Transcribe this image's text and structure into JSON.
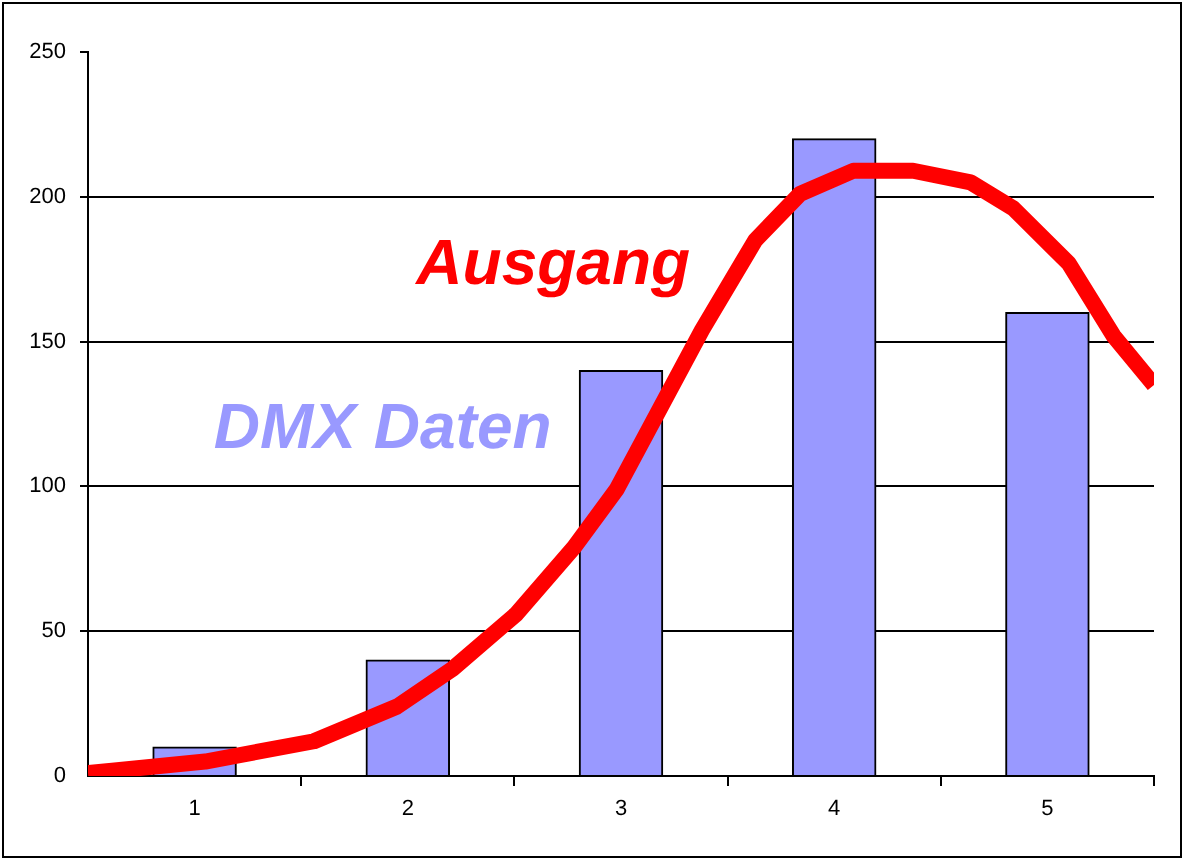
{
  "chart_data": {
    "type": "bar",
    "x": [
      1,
      2,
      3,
      4,
      5
    ],
    "xlim": [
      0.5,
      5.5
    ],
    "xticks": [
      1,
      {
        "value": 1.5,
        "label": null
      },
      2,
      {
        "value": 2.5,
        "label": null
      },
      3,
      {
        "value": 3.5,
        "label": null
      },
      4,
      {
        "value": 4.5,
        "label": null
      },
      5,
      {
        "value": 5.5,
        "label": null
      }
    ],
    "ylim": [
      0,
      250
    ],
    "yticks": [
      0,
      50,
      100,
      150,
      200,
      250
    ],
    "grid": "y",
    "series": [
      {
        "name": "DMX Daten",
        "color": "#9999ff",
        "values": [
          10,
          40,
          140,
          220,
          160
        ]
      },
      {
        "name": "Ausgang",
        "type": "line",
        "color": "#ff0000",
        "x": [
          0.5,
          1.05,
          1.56,
          1.95,
          2.21,
          2.51,
          2.78,
          2.98,
          3.38,
          3.63,
          3.84,
          4.09,
          4.37,
          4.64,
          4.84,
          5.1,
          5.31,
          5.5
        ],
        "values": [
          1,
          5,
          12,
          24,
          37,
          56,
          79,
          99,
          154,
          185,
          201,
          209,
          209,
          205,
          196,
          177,
          152,
          135
        ]
      }
    ]
  }
}
